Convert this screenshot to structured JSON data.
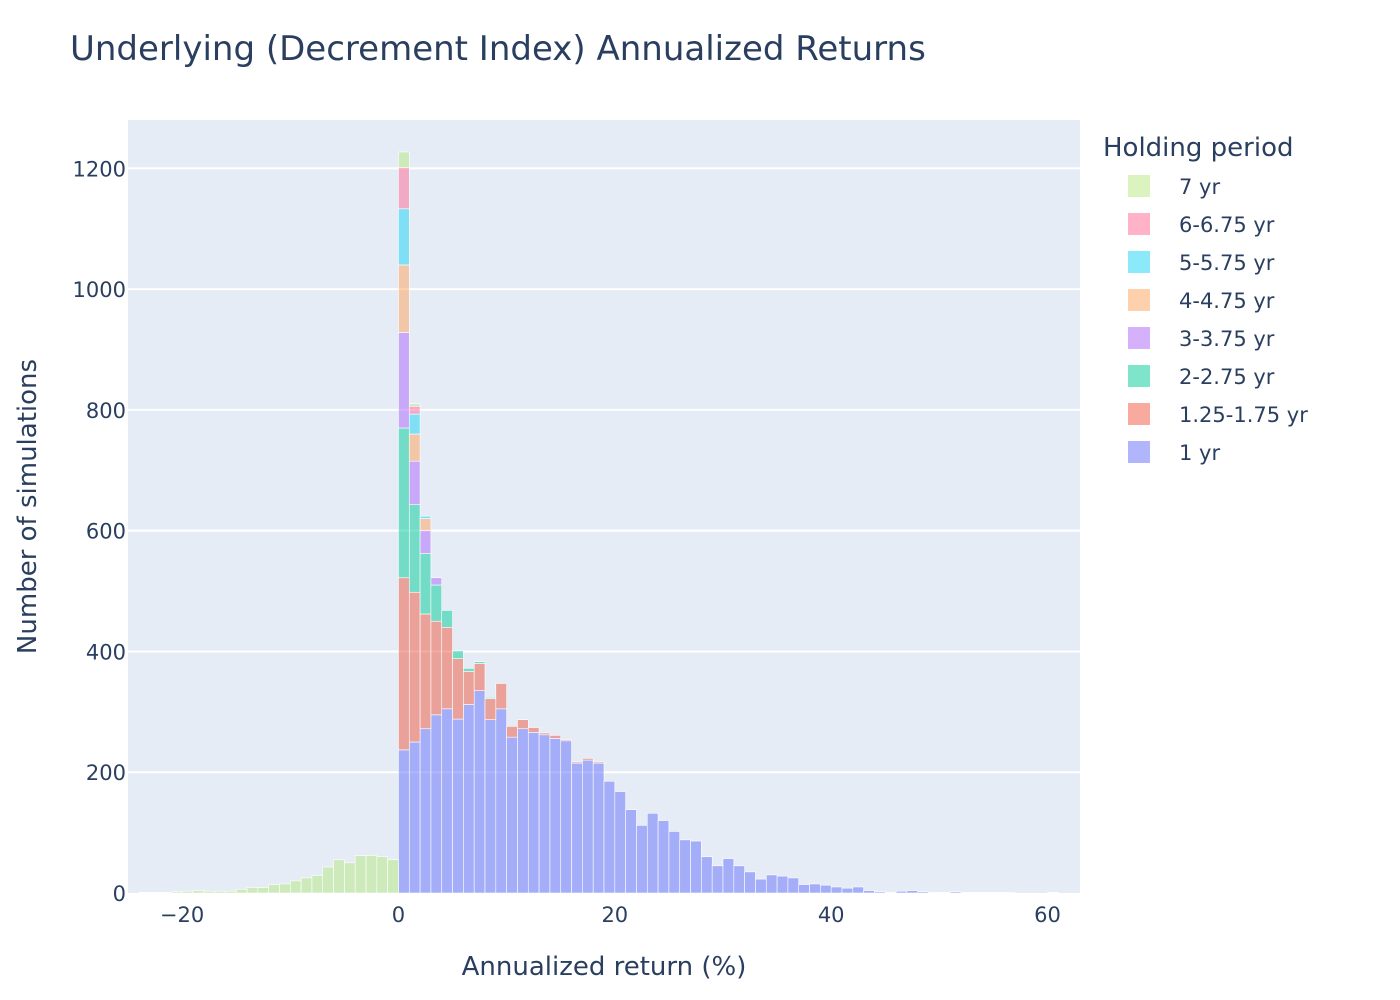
{
  "chart_data": {
    "type": "bar",
    "title": "Underlying (Decrement Index) Annualized Returns",
    "xlabel": "Annualized return (%)",
    "ylabel": "Number of simulations",
    "xlim": [
      -25,
      63
    ],
    "ylim": [
      0,
      1280
    ],
    "x_ticks": [
      -20,
      0,
      20,
      40,
      60
    ],
    "x_tick_labels": [
      "−20",
      "0",
      "20",
      "40",
      "60"
    ],
    "y_ticks": [
      0,
      200,
      400,
      600,
      800,
      1000,
      1200
    ],
    "y_tick_labels": [
      "0",
      "200",
      "400",
      "600",
      "800",
      "1000",
      "1200"
    ],
    "bin_width": 1,
    "barmode": "stack",
    "grid": true,
    "legend": {
      "title": "Holding period",
      "placement": "right"
    },
    "series": [
      {
        "name": "1 yr",
        "color": "#636efa",
        "x": [
          0,
          1,
          2,
          3,
          4,
          5,
          6,
          7,
          8,
          9,
          10,
          11,
          12,
          13,
          14,
          15,
          16,
          17,
          18,
          19,
          20,
          21,
          22,
          23,
          24,
          25,
          26,
          27,
          28,
          29,
          30,
          31,
          32,
          33,
          34,
          35,
          36,
          37,
          38,
          39,
          40,
          41,
          42,
          43,
          44,
          45,
          46,
          47,
          48,
          49,
          50,
          51,
          52,
          53,
          54,
          55,
          56,
          57,
          58,
          59,
          60
        ],
        "values": [
          237,
          250,
          272,
          295,
          305,
          288,
          312,
          335,
          287,
          305,
          258,
          272,
          266,
          262,
          256,
          252,
          215,
          220,
          215,
          185,
          168,
          138,
          112,
          132,
          120,
          102,
          88,
          86,
          60,
          45,
          57,
          45,
          35,
          23,
          30,
          28,
          25,
          14,
          15,
          13,
          10,
          8,
          10,
          4,
          2,
          1,
          3,
          4,
          2,
          1,
          1,
          2,
          1,
          1,
          1,
          1,
          1,
          0,
          0,
          0,
          1
        ]
      },
      {
        "name": "1.25-1.75 yr",
        "color": "#ef553b",
        "x": [
          0,
          1,
          2,
          3,
          4,
          5,
          6,
          7,
          8,
          9,
          10,
          11,
          12,
          13,
          14,
          15,
          16,
          17,
          18
        ],
        "values": [
          285,
          248,
          190,
          155,
          135,
          100,
          55,
          45,
          35,
          42,
          18,
          15,
          8,
          3,
          5,
          2,
          2,
          3,
          2
        ]
      },
      {
        "name": "2-2.75 yr",
        "color": "#00cc96",
        "x": [
          0,
          1,
          2,
          3,
          4,
          5,
          6,
          7,
          8
        ],
        "values": [
          248,
          145,
          100,
          60,
          28,
          13,
          5,
          3,
          2
        ]
      },
      {
        "name": "3-3.75 yr",
        "color": "#ab63fa",
        "x": [
          0,
          1,
          2,
          3
        ],
        "values": [
          158,
          72,
          38,
          12
        ]
      },
      {
        "name": "4-4.75 yr",
        "color": "#ffa15a",
        "x": [
          0,
          1,
          2
        ],
        "values": [
          112,
          45,
          20
        ]
      },
      {
        "name": "5-5.75 yr",
        "color": "#19d3f3",
        "x": [
          0,
          1,
          2
        ],
        "values": [
          93,
          33,
          4
        ]
      },
      {
        "name": "6-6.75 yr",
        "color": "#ff6692",
        "x": [
          0,
          1
        ],
        "values": [
          68,
          13
        ]
      },
      {
        "name": "7 yr",
        "color": "#b6e880",
        "x": [
          -24,
          -23,
          -22,
          -21,
          -20,
          -19,
          -18,
          -17,
          -16,
          -15,
          -14,
          -13,
          -12,
          -11,
          -10,
          -9,
          -8,
          -7,
          -6,
          -5,
          -4,
          -3,
          -2,
          -1,
          0,
          1
        ],
        "values": [
          1,
          1,
          1,
          2,
          3,
          4,
          3,
          3,
          3,
          6,
          9,
          9,
          14,
          15,
          20,
          25,
          29,
          43,
          55,
          50,
          62,
          62,
          60,
          55,
          26,
          4
        ]
      }
    ]
  }
}
